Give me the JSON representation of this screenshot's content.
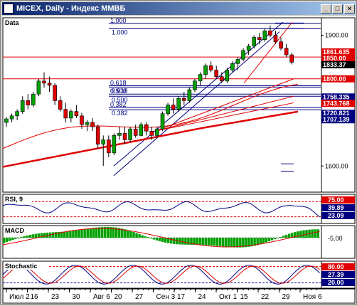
{
  "window": {
    "title": "MICEX, Daily - Индекс ММВБ",
    "min_label": "_",
    "max_label": "□",
    "close_label": "×"
  },
  "colors": {
    "up": "#00a000",
    "down": "#e00000",
    "ma": "#e00000",
    "blue": "#000080",
    "grid": "#a0a0a0"
  },
  "panels": {
    "price": {
      "label": "Data",
      "ylim": [
        1540,
        1940
      ],
      "ticks": [
        {
          "v": 1900,
          "t": "1900.00"
        },
        {
          "v": 1600,
          "t": "1600.00"
        }
      ],
      "levels": [
        {
          "v": 1861.635,
          "t": "1861.635",
          "fill": "#e00000"
        },
        {
          "v": 1850,
          "t": "1850.00",
          "fill": "#e00000"
        },
        {
          "v": 1833.37,
          "t": "1833.37",
          "fill": "#000000"
        },
        {
          "v": 1800,
          "t": "1800.00",
          "fill": "#e00000"
        },
        {
          "v": 1758.335,
          "t": "1758.335",
          "fill": "#000080"
        },
        {
          "v": 1743.768,
          "t": "1743.768",
          "fill": "#e00000"
        },
        {
          "v": 1720.821,
          "t": "1720.821",
          "fill": "#000080"
        },
        {
          "v": 1707.139,
          "t": "1707.139",
          "fill": "#000080"
        }
      ],
      "fib_labels": [
        "1.000",
        "1.000",
        "0.618",
        "0.618",
        "0.500",
        "0.500",
        "0.382",
        "0.382"
      ]
    },
    "rsi": {
      "label": "RSI, 9",
      "ticks": [
        {
          "t": "75.00",
          "fill": "#e00000"
        },
        {
          "t": "39.89",
          "fill": "#000080"
        },
        {
          "t": "23.09",
          "fill": "#000080"
        }
      ]
    },
    "macd": {
      "label": "MACD",
      "ticks": [
        {
          "t": "-5.00"
        }
      ]
    },
    "stoch": {
      "label": "Stochastic",
      "ticks": [
        {
          "t": "80.00",
          "fill": "#e00000"
        },
        {
          "t": "27.39",
          "fill": "#000080"
        },
        {
          "t": "20.00",
          "fill": "#000080"
        }
      ]
    }
  },
  "xaxis": [
    "Июл 2",
    "16",
    "23",
    "30",
    "Авг 6",
    "20",
    "27",
    "Сен 3",
    "17",
    "24",
    "Окт 1",
    "15",
    "22",
    "29",
    "Ноя 6"
  ],
  "chart_data": {
    "type": "candlestick",
    "title": "MICEX, Daily - Индекс ММВБ",
    "ylim": [
      1540,
      1940
    ],
    "candles": [
      [
        1700,
        1712,
        1690,
        1708
      ],
      [
        1708,
        1720,
        1700,
        1715
      ],
      [
        1715,
        1730,
        1705,
        1725
      ],
      [
        1725,
        1760,
        1720,
        1750
      ],
      [
        1750,
        1765,
        1730,
        1740
      ],
      [
        1740,
        1770,
        1735,
        1765
      ],
      [
        1765,
        1800,
        1760,
        1795
      ],
      [
        1795,
        1815,
        1780,
        1790
      ],
      [
        1790,
        1805,
        1770,
        1785
      ],
      [
        1785,
        1790,
        1740,
        1750
      ],
      [
        1750,
        1760,
        1725,
        1730
      ],
      [
        1730,
        1745,
        1700,
        1710
      ],
      [
        1710,
        1730,
        1700,
        1725
      ],
      [
        1725,
        1740,
        1710,
        1715
      ],
      [
        1715,
        1722,
        1685,
        1695
      ],
      [
        1695,
        1705,
        1680,
        1700
      ],
      [
        1700,
        1710,
        1680,
        1690
      ],
      [
        1690,
        1695,
        1640,
        1650
      ],
      [
        1650,
        1670,
        1600,
        1660
      ],
      [
        1660,
        1670,
        1620,
        1630
      ],
      [
        1630,
        1675,
        1625,
        1670
      ],
      [
        1670,
        1690,
        1660,
        1675
      ],
      [
        1675,
        1690,
        1650,
        1660
      ],
      [
        1660,
        1690,
        1655,
        1685
      ],
      [
        1685,
        1695,
        1665,
        1670
      ],
      [
        1670,
        1700,
        1668,
        1695
      ],
      [
        1695,
        1700,
        1670,
        1680
      ],
      [
        1680,
        1690,
        1660,
        1670
      ],
      [
        1670,
        1690,
        1665,
        1685
      ],
      [
        1685,
        1725,
        1680,
        1720
      ],
      [
        1720,
        1745,
        1715,
        1740
      ],
      [
        1740,
        1755,
        1720,
        1730
      ],
      [
        1730,
        1760,
        1725,
        1755
      ],
      [
        1755,
        1770,
        1740,
        1750
      ],
      [
        1750,
        1780,
        1745,
        1775
      ],
      [
        1775,
        1800,
        1770,
        1795
      ],
      [
        1795,
        1815,
        1785,
        1810
      ],
      [
        1810,
        1835,
        1800,
        1830
      ],
      [
        1830,
        1840,
        1815,
        1820
      ],
      [
        1820,
        1830,
        1800,
        1805
      ],
      [
        1805,
        1815,
        1790,
        1795
      ],
      [
        1795,
        1825,
        1790,
        1820
      ],
      [
        1820,
        1840,
        1815,
        1835
      ],
      [
        1835,
        1850,
        1820,
        1845
      ],
      [
        1845,
        1870,
        1840,
        1865
      ],
      [
        1865,
        1880,
        1855,
        1875
      ],
      [
        1875,
        1900,
        1870,
        1895
      ],
      [
        1895,
        1905,
        1880,
        1890
      ],
      [
        1890,
        1915,
        1885,
        1910
      ],
      [
        1910,
        1922,
        1895,
        1900
      ],
      [
        1900,
        1910,
        1880,
        1885
      ],
      [
        1885,
        1895,
        1865,
        1870
      ],
      [
        1870,
        1880,
        1850,
        1855
      ],
      [
        1855,
        1860,
        1833,
        1838
      ]
    ]
  }
}
